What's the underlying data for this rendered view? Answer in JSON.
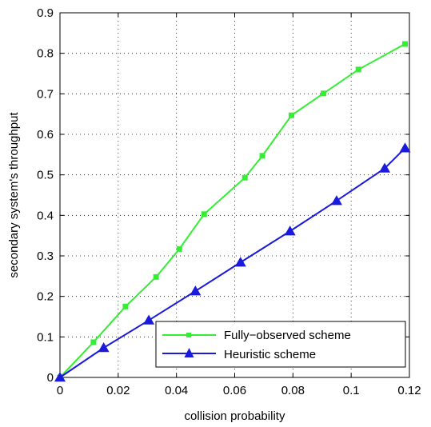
{
  "chart_data": {
    "type": "line",
    "title": "",
    "xlabel": "collision probability",
    "ylabel": "secondary system's throughput",
    "xlim": [
      0,
      0.12
    ],
    "ylim": [
      0,
      0.9
    ],
    "x_ticks": [
      "0",
      "0.02",
      "0.04",
      "0.06",
      "0.08",
      "0.1",
      "0.12"
    ],
    "y_ticks": [
      "0",
      "0.1",
      "0.2",
      "0.3",
      "0.4",
      "0.5",
      "0.6",
      "0.7",
      "0.8",
      "0.9"
    ],
    "grid": true,
    "legend_position": "bottom-right",
    "series": [
      {
        "name": "Fully−observed scheme",
        "color": "#33ee33",
        "marker": "square",
        "x": [
          0,
          0.0115,
          0.0225,
          0.033,
          0.041,
          0.0495,
          0.0635,
          0.0695,
          0.0795,
          0.0905,
          0.1025,
          0.1185
        ],
        "y": [
          0,
          0.087,
          0.175,
          0.248,
          0.317,
          0.403,
          0.493,
          0.547,
          0.647,
          0.701,
          0.76,
          0.823
        ]
      },
      {
        "name": "Heuristic scheme",
        "color": "#1a1add",
        "marker": "triangle",
        "x": [
          0,
          0.015,
          0.0305,
          0.0465,
          0.062,
          0.079,
          0.095,
          0.1115,
          0.1185
        ],
        "y": [
          0,
          0.073,
          0.141,
          0.213,
          0.284,
          0.361,
          0.436,
          0.516,
          0.566
        ]
      }
    ]
  }
}
